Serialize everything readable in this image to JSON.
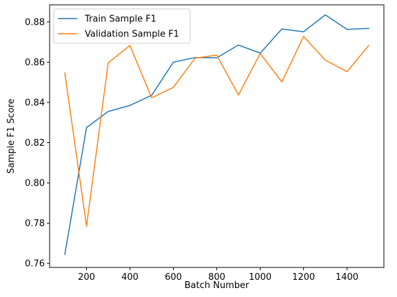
{
  "chart_data": {
    "type": "line",
    "title": "",
    "xlabel": "Batch Number",
    "ylabel": "Sample F1 Score",
    "x": [
      100,
      200,
      300,
      400,
      500,
      600,
      700,
      800,
      900,
      1000,
      1100,
      1200,
      1300,
      1400,
      1500
    ],
    "xlim": [
      30,
      1570
    ],
    "ylim": [
      0.758,
      0.8885
    ],
    "xticks": [
      200,
      400,
      600,
      800,
      1000,
      1200,
      1400
    ],
    "yticks": [
      0.76,
      0.78,
      0.8,
      0.82,
      0.84,
      0.86,
      0.88
    ],
    "xtick_labels": [
      "200",
      "400",
      "600",
      "800",
      "1000",
      "1200",
      "1400"
    ],
    "ytick_labels": [
      "0.76",
      "0.78",
      "0.80",
      "0.82",
      "0.84",
      "0.86",
      "0.88"
    ],
    "grid": false,
    "legend_position": "top-left",
    "series": [
      {
        "name": "Train Sample F1",
        "color": "#1f77b4",
        "values": [
          0.7645,
          0.8275,
          0.8355,
          0.8385,
          0.8435,
          0.86,
          0.8623,
          0.8622,
          0.8685,
          0.8645,
          0.8765,
          0.8751,
          0.8835,
          0.8763,
          0.8768
        ]
      },
      {
        "name": "Validation Sample F1",
        "color": "#ff7f0e",
        "values": [
          0.8546,
          0.7785,
          0.8597,
          0.8683,
          0.8423,
          0.8475,
          0.862,
          0.8635,
          0.8437,
          0.8643,
          0.8502,
          0.8728,
          0.861,
          0.8553,
          0.8683
        ]
      }
    ]
  }
}
